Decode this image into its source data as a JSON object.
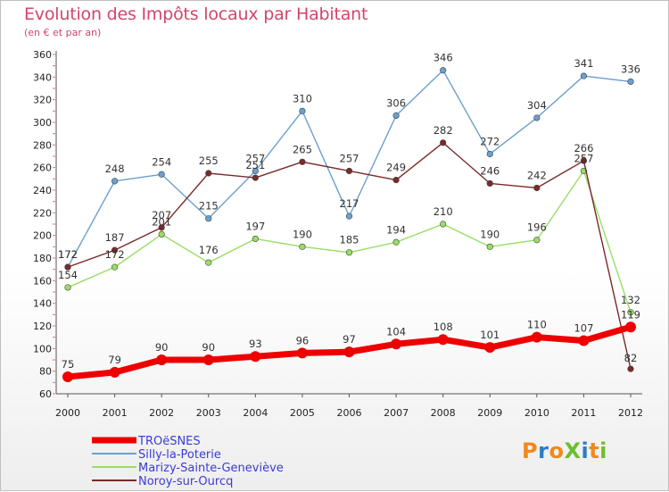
{
  "chart_data": {
    "type": "line",
    "title": "Evolution des Impôts locaux par Habitant",
    "subtitle": "(en € et par an)",
    "x": [
      2000,
      2001,
      2002,
      2003,
      2004,
      2005,
      2006,
      2007,
      2008,
      2009,
      2010,
      2011,
      2012
    ],
    "y_ticks": [
      60,
      80,
      100,
      120,
      140,
      160,
      180,
      200,
      220,
      240,
      260,
      280,
      300,
      320,
      340,
      360
    ],
    "ylim": [
      60,
      360
    ],
    "grid": false,
    "legend_position": "bottom-left",
    "series": [
      {
        "name": "TROëSNES",
        "color": "#ee0000",
        "values": [
          75,
          79,
          90,
          90,
          93,
          96,
          97,
          104,
          108,
          101,
          110,
          107,
          119
        ],
        "labels": [
          "75",
          "79",
          "90",
          "90",
          "93",
          "96",
          "97",
          "104",
          "108",
          "101",
          "110",
          "107",
          "119"
        ]
      },
      {
        "name": "Silly-la-Poterie",
        "color": "#6aa0cf",
        "values": [
          172,
          248,
          254,
          215,
          257,
          310,
          217,
          306,
          346,
          272,
          304,
          341,
          336
        ],
        "labels": [
          "172",
          "248",
          "254",
          "215",
          "257",
          "310",
          "217",
          "306",
          "346",
          "272",
          "304",
          "341",
          "336"
        ]
      },
      {
        "name": "Marizy-Sainte-Geneviève",
        "color": "#99dd66",
        "values": [
          154,
          172,
          201,
          176,
          197,
          190,
          185,
          194,
          210,
          190,
          196,
          257,
          132
        ],
        "labels": [
          "154",
          "172",
          "201",
          "176",
          "197",
          "190",
          "185",
          "194",
          "210",
          "190",
          "196",
          "257",
          "132"
        ]
      },
      {
        "name": "Noroy-sur-Ourcq",
        "color": "#7a2a2a",
        "values": [
          172,
          187,
          207,
          255,
          251,
          265,
          257,
          249,
          282,
          246,
          242,
          266,
          82
        ],
        "labels": [
          "172",
          "187",
          "207",
          "255",
          "251",
          "265",
          "257",
          "249",
          "282",
          "246",
          "242",
          "266",
          "82"
        ]
      }
    ]
  },
  "logo": {
    "text": "ProXiti",
    "letter_colors": [
      "#f08a1c",
      "#2e7dc4",
      "#f08a1c",
      "#6cbf2e",
      "#2e7dc4",
      "#f08a1c",
      "#6cbf2e"
    ]
  }
}
